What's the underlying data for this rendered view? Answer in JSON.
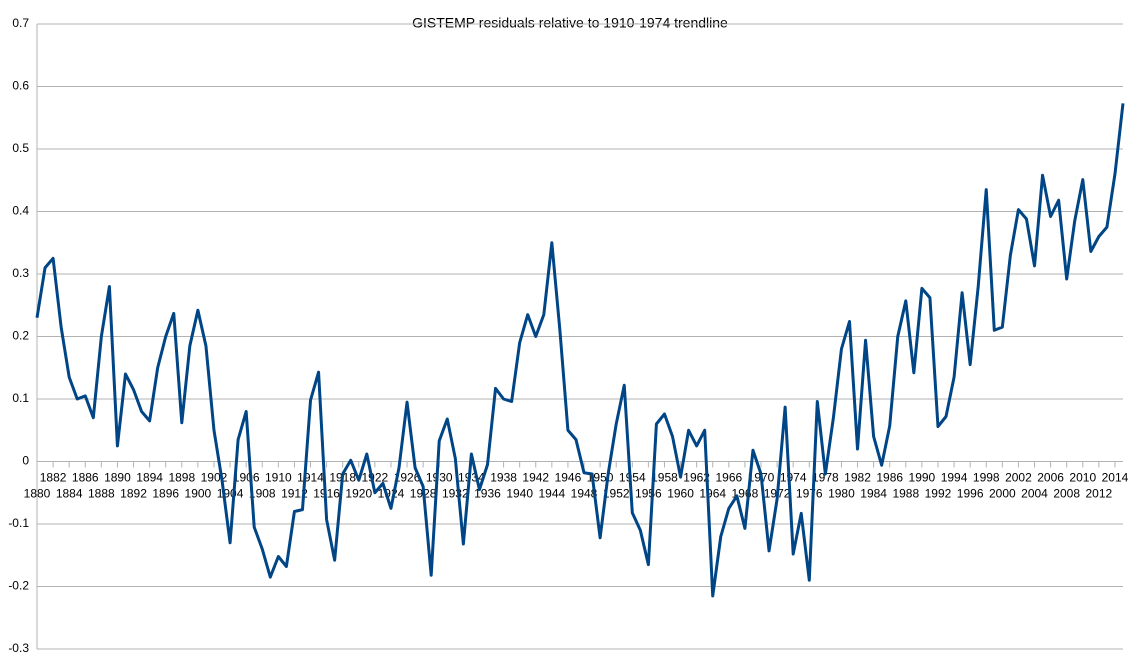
{
  "chart_data": {
    "type": "line",
    "title": "GISTEMP residuals relative to 1910-1974 trendline",
    "categories": [
      "1880",
      null,
      "1882",
      null,
      "1884",
      null,
      "1886",
      null,
      "1888",
      null,
      "1890",
      null,
      "1892",
      null,
      "1894",
      null,
      "1896",
      null,
      "1898",
      null,
      "1900",
      null,
      "1902",
      null,
      "1904",
      null,
      "1906",
      null,
      "1908",
      null,
      "1910",
      null,
      "1912",
      null,
      "1914",
      null,
      "1916",
      null,
      "1918",
      null,
      "1920",
      null,
      "1922",
      null,
      "1924",
      null,
      "1926",
      null,
      "1928",
      null,
      "1930",
      null,
      "1932",
      null,
      "1934",
      null,
      "1936",
      null,
      "1938",
      null,
      "1940",
      null,
      "1942",
      null,
      "1944",
      null,
      "1946",
      null,
      "1948",
      null,
      "1950",
      null,
      "1952",
      null,
      "1954",
      null,
      "1956",
      null,
      "1958",
      null,
      "1960",
      null,
      "1962",
      null,
      "1964",
      null,
      "1966",
      null,
      "1968",
      null,
      "1970",
      null,
      "1972",
      null,
      "1974",
      null,
      "1976",
      null,
      "1978",
      null,
      "1980",
      null,
      "1982",
      null,
      "1984",
      null,
      "1986",
      null,
      "1988",
      null,
      "1990",
      null,
      "1992",
      null,
      "1994",
      null,
      "1996",
      null,
      "1998",
      null,
      "2000",
      null,
      "2002",
      null,
      "2004",
      null,
      "2006",
      null,
      "2008",
      null,
      "2010",
      null,
      "2012",
      null,
      "2014",
      null
    ],
    "values": [
      0.23,
      0.31,
      0.325,
      0.215,
      0.135,
      0.1,
      0.105,
      0.07,
      0.2,
      0.28,
      0.025,
      0.14,
      0.115,
      0.08,
      0.065,
      0.15,
      0.2,
      0.237,
      0.062,
      0.185,
      0.242,
      0.185,
      0.05,
      -0.03,
      -0.13,
      0.035,
      0.08,
      -0.105,
      -0.14,
      -0.185,
      -0.152,
      -0.168,
      -0.08,
      -0.077,
      0.098,
      0.143,
      -0.093,
      -0.158,
      -0.02,
      0.002,
      -0.03,
      0.012,
      -0.05,
      -0.035,
      -0.075,
      -0.01,
      0.095,
      -0.01,
      -0.04,
      -0.182,
      0.033,
      0.068,
      0.005,
      -0.132,
      0.012,
      -0.045,
      -0.005,
      0.117,
      0.1,
      0.096,
      0.19,
      0.235,
      0.2,
      0.235,
      0.35,
      0.21,
      0.05,
      0.035,
      -0.018,
      -0.02,
      -0.122,
      -0.02,
      0.06,
      0.122,
      -0.082,
      -0.11,
      -0.165,
      0.06,
      0.076,
      0.04,
      -0.025,
      0.05,
      0.025,
      0.05,
      -0.215,
      -0.12,
      -0.075,
      -0.055,
      -0.107,
      0.018,
      -0.02,
      -0.143,
      -0.06,
      0.087,
      -0.148,
      -0.083,
      -0.19,
      0.096,
      -0.02,
      0.07,
      0.18,
      0.224,
      0.02,
      0.194,
      0.04,
      -0.006,
      0.057,
      0.2,
      0.257,
      0.142,
      0.277,
      0.262,
      0.056,
      0.072,
      0.135,
      0.27,
      0.155,
      0.28,
      0.435,
      0.21,
      0.215,
      0.33,
      0.403,
      0.388,
      0.313,
      0.458,
      0.392,
      0.418,
      0.292,
      0.385,
      0.451,
      0.336,
      0.36,
      0.375,
      0.46,
      0.573
    ],
    "color": "#004586",
    "ylim": [
      -0.3,
      0.7
    ],
    "yticks": [
      -0.3,
      -0.2,
      -0.1,
      0,
      0.1,
      0.2,
      0.3,
      0.4,
      0.5,
      0.6,
      0.7
    ],
    "grid": true
  }
}
